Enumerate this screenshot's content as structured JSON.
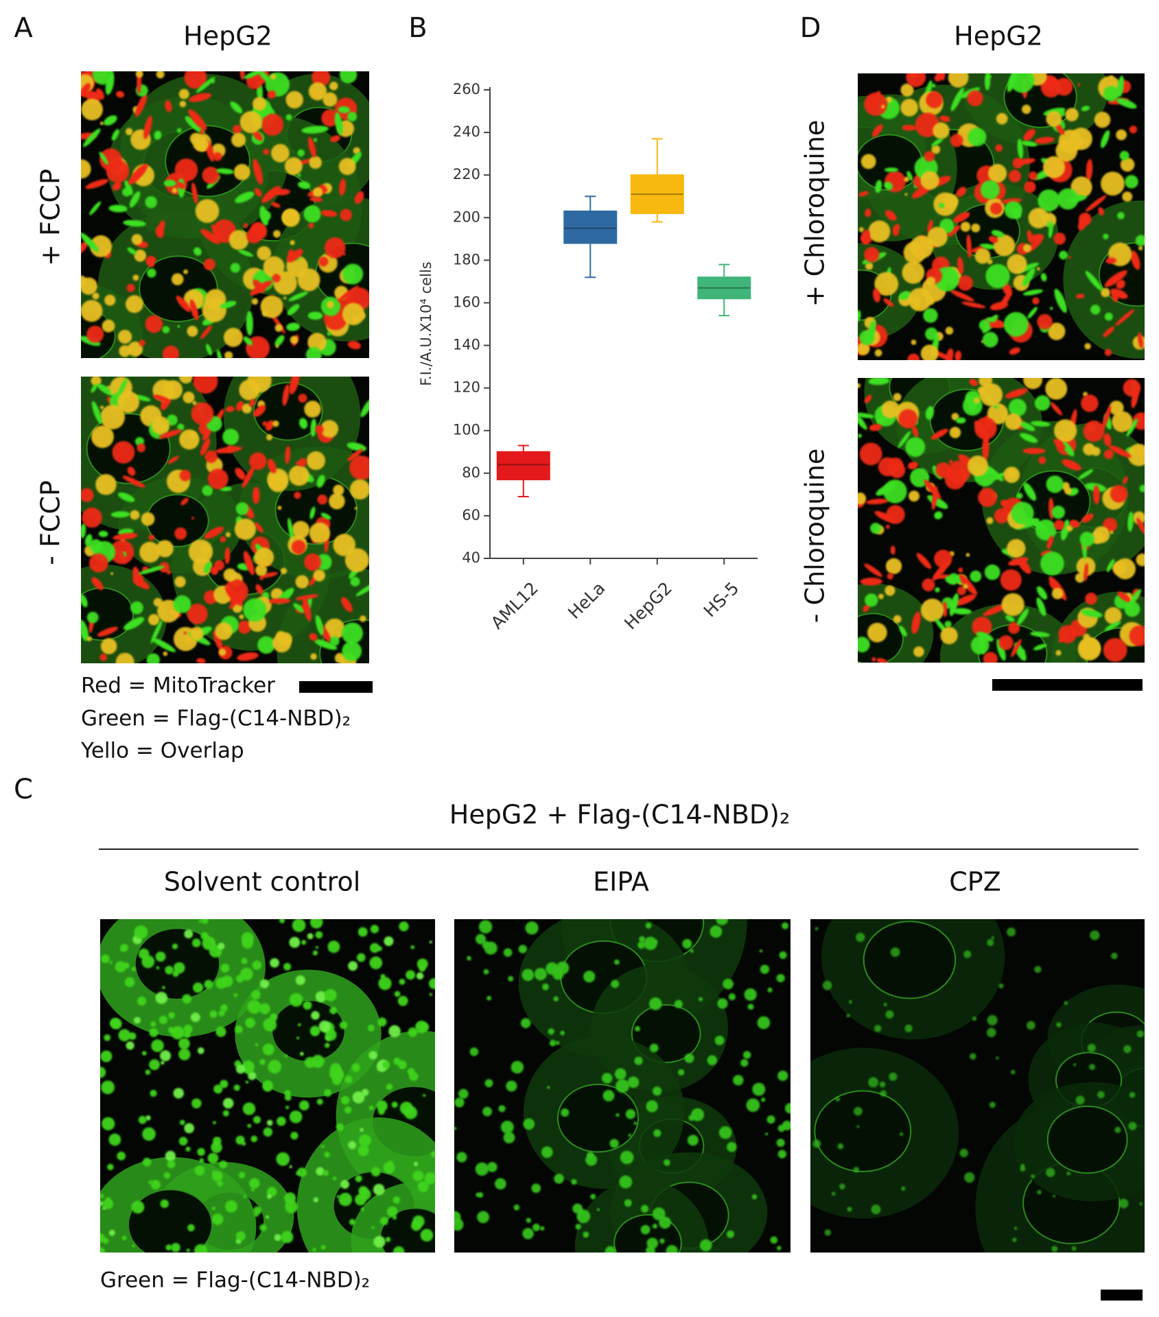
{
  "panels": {
    "A": {
      "label": "A",
      "title": "HepG2",
      "rows": [
        "+ FCCP",
        "- FCCP"
      ],
      "legend": [
        "Red = MitoTracker",
        "Green = Flag-(C14-NBD)₂",
        "Yello = Overlap"
      ]
    },
    "B": {
      "label": "B"
    },
    "C": {
      "label": "C",
      "title": "HepG2 + Flag-(C14-NBD)₂",
      "columns": [
        "Solvent control",
        "EIPA",
        "CPZ"
      ],
      "legend": "Green = Flag-(C14-NBD)₂"
    },
    "D": {
      "label": "D",
      "title": "HepG2",
      "rows": [
        "+ Chloroquine",
        "- Chloroquine"
      ]
    }
  },
  "chart_data": {
    "type": "box",
    "ylabel": "F.I./A.U.X10⁴ cells",
    "categories": [
      "AML12",
      "HeLa",
      "HepG2",
      "HS-5"
    ],
    "colors": [
      "#e3191c",
      "#2e6aa1",
      "#f7b90f",
      "#3fb57a"
    ],
    "whisker_low": [
      69,
      172,
      198,
      154
    ],
    "q1": [
      77,
      188,
      202,
      162
    ],
    "median": [
      84,
      195,
      211,
      167
    ],
    "q3": [
      90,
      203,
      220,
      172
    ],
    "whisker_high": [
      93,
      210,
      237,
      178
    ],
    "ylim": [
      40,
      260
    ],
    "yticks": [
      40,
      60,
      80,
      100,
      120,
      140,
      160,
      180,
      200,
      220,
      240,
      260
    ]
  }
}
